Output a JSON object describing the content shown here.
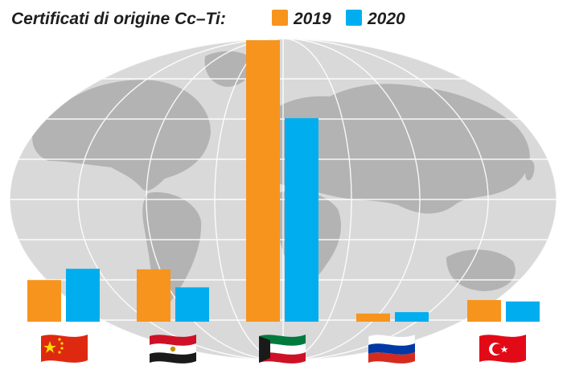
{
  "chart_data": {
    "type": "bar",
    "title": "Certificati di origine Cc–Ti:",
    "categories": [
      "china-flag",
      "egypt-flag",
      "kuwait-flag",
      "russia-flag",
      "turkey-flag"
    ],
    "series": [
      {
        "name": "2019",
        "color": "#f7941d",
        "values": [
          14.8,
          18.6,
          100,
          2.9,
          7.7
        ]
      },
      {
        "name": "2020",
        "color": "#00aeef",
        "values": [
          18.8,
          12.2,
          72.3,
          3.4,
          7.2
        ]
      }
    ],
    "ylim": [
      0,
      100
    ],
    "grid": false,
    "legend": "top",
    "background": "world-map"
  }
}
